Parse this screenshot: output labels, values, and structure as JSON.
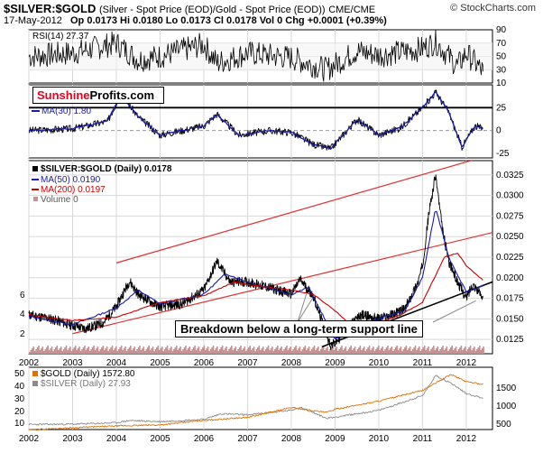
{
  "header": {
    "title": "$SILVER:$GOLD",
    "subtitle": "(Silver - Spot Price (EOD)/Gold - Spot Price (EOD))",
    "exchange": "CME/CME",
    "credit": "© StockCharts.com",
    "date": "17-May-2012",
    "quote": "Op 0.0173  Hi 0.0180  Lo 0.0173  Cl 0.0178  Vol 0  Chg +0.0001 (+0.39%)"
  },
  "brand": {
    "part1": "Sunshine",
    "part2": "Profits.com"
  },
  "annotation": "Breakdown below a long-term support line",
  "colors": {
    "price": "#000000",
    "ma50": "#1a1ab0",
    "ma200": "#cc0000",
    "channel": "#e03030",
    "gold": "#e07000",
    "silver": "#8a8a8a",
    "volume": "#c89090"
  },
  "chart_data": [
    {
      "type": "line",
      "title": "RSI(14) 27.37",
      "legend": [
        "RSI(14) 27.37"
      ],
      "y_ticks": [
        "90",
        "70",
        "50",
        "30",
        "10"
      ],
      "ylim": [
        10,
        90
      ],
      "x": [
        2002.0,
        2003.0,
        2004.0,
        2004.5,
        2005.0,
        2006.0,
        2006.3,
        2007.0,
        2008.0,
        2008.8,
        2009.5,
        2010.0,
        2010.5,
        2011.0,
        2011.3,
        2011.8,
        2012.0,
        2012.38
      ],
      "values": [
        50,
        55,
        70,
        45,
        50,
        68,
        40,
        55,
        48,
        30,
        58,
        52,
        56,
        62,
        72,
        35,
        55,
        27.37
      ]
    },
    {
      "type": "line",
      "title": "MA(30) 1.80",
      "legend": [
        "MA(30) 1.80"
      ],
      "y_ticks": [
        "25",
        "0",
        "-25"
      ],
      "ylim": [
        -30,
        50
      ],
      "x": [
        2002.0,
        2003.0,
        2003.8,
        2004.1,
        2004.5,
        2005.0,
        2006.0,
        2006.3,
        2006.8,
        2007.5,
        2008.0,
        2008.5,
        2008.9,
        2009.5,
        2010.0,
        2010.5,
        2011.0,
        2011.3,
        2011.6,
        2011.9,
        2012.2,
        2012.38
      ],
      "values": [
        0,
        2,
        10,
        40,
        15,
        -5,
        5,
        18,
        -5,
        0,
        -2,
        -15,
        -20,
        12,
        -5,
        3,
        25,
        42,
        20,
        -18,
        5,
        1.8
      ]
    },
    {
      "type": "line",
      "title": "$SILVER:$GOLD (Daily) 0.0178",
      "legend": [
        "$SILVER:$GOLD (Daily) 0.0178",
        "MA(50) 0.0190",
        "MA(200) 0.0197",
        "Volume 0"
      ],
      "y_ticks": [
        "0.0325",
        "0.0300",
        "0.0275",
        "0.0250",
        "0.0225",
        "0.0200",
        "0.0175",
        "0.0150",
        "0.0125"
      ],
      "left_ticks": [
        "6",
        "4",
        "2"
      ],
      "x_ticks": [
        "2002",
        "2003",
        "2004",
        "2005",
        "2006",
        "2007",
        "2008",
        "2009",
        "2010",
        "2011",
        "2012"
      ],
      "xlim": [
        2002.0,
        2012.6
      ],
      "series": [
        {
          "name": "$SILVER:$GOLD (Daily) 0.0178",
          "x": [
            2002.0,
            2002.5,
            2003.0,
            2003.3,
            2003.7,
            2004.0,
            2004.3,
            2004.5,
            2004.8,
            2005.0,
            2005.5,
            2006.0,
            2006.3,
            2006.6,
            2007.0,
            2007.5,
            2008.0,
            2008.2,
            2008.5,
            2008.75,
            2008.9,
            2009.0,
            2009.3,
            2009.6,
            2010.0,
            2010.3,
            2010.6,
            2010.9,
            2011.0,
            2011.15,
            2011.3,
            2011.45,
            2011.6,
            2011.8,
            2012.0,
            2012.15,
            2012.3,
            2012.38
          ],
          "values": [
            0.0155,
            0.015,
            0.0142,
            0.0138,
            0.0145,
            0.0165,
            0.0196,
            0.018,
            0.017,
            0.0165,
            0.0168,
            0.0185,
            0.022,
            0.0195,
            0.0195,
            0.0188,
            0.018,
            0.0198,
            0.0178,
            0.014,
            0.0118,
            0.012,
            0.014,
            0.0155,
            0.015,
            0.0155,
            0.0162,
            0.0195,
            0.0215,
            0.028,
            0.0325,
            0.026,
            0.022,
            0.0195,
            0.0175,
            0.0193,
            0.0182,
            0.0178
          ]
        },
        {
          "name": "MA(50) 0.0190",
          "x": [
            2002.0,
            2003.0,
            2004.0,
            2004.5,
            2005.0,
            2006.0,
            2006.5,
            2007.0,
            2008.0,
            2008.4,
            2009.0,
            2009.5,
            2010.0,
            2010.6,
            2011.0,
            2011.3,
            2011.6,
            2012.0,
            2012.38
          ],
          "values": [
            0.0153,
            0.0143,
            0.0163,
            0.0185,
            0.0168,
            0.018,
            0.0205,
            0.0195,
            0.018,
            0.0188,
            0.0125,
            0.014,
            0.015,
            0.016,
            0.02,
            0.0285,
            0.0225,
            0.0183,
            0.019
          ]
        },
        {
          "name": "MA(200) 0.0197",
          "x": [
            2002.0,
            2003.0,
            2004.0,
            2005.0,
            2006.0,
            2006.7,
            2007.0,
            2008.0,
            2008.5,
            2009.0,
            2009.5,
            2010.0,
            2010.5,
            2011.0,
            2011.5,
            2011.8,
            2012.0,
            2012.38
          ],
          "values": [
            0.0155,
            0.0148,
            0.0152,
            0.017,
            0.0178,
            0.0195,
            0.0192,
            0.0185,
            0.018,
            0.016,
            0.0135,
            0.0145,
            0.0155,
            0.017,
            0.0225,
            0.023,
            0.0215,
            0.0197
          ]
        }
      ],
      "trendlines": [
        {
          "name": "channel-upper",
          "x": [
            2004.0,
            2012.6
          ],
          "values": [
            0.0218,
            0.035
          ]
        },
        {
          "name": "channel-lower",
          "x": [
            2003.0,
            2012.6
          ],
          "values": [
            0.0132,
            0.0255
          ]
        },
        {
          "name": "support",
          "x": [
            2008.7,
            2012.6
          ],
          "values": [
            0.0116,
            0.0195
          ]
        }
      ]
    },
    {
      "type": "line",
      "title": "$GOLD (Daily) 1572.80 / $SILVER (Daily) 27.93",
      "legend": [
        "$GOLD (Daily) 1572.80",
        "$SILVER (Daily) 27.93"
      ],
      "left_ticks": [
        "50",
        "40",
        "30",
        "20",
        "10"
      ],
      "right_ticks": [
        "1500",
        "1000",
        "500"
      ],
      "x_ticks": [
        "2002",
        "2003",
        "2004",
        "2005",
        "2006",
        "2007",
        "2008",
        "2009",
        "2010",
        "2011",
        "2012"
      ],
      "series": [
        {
          "name": "$GOLD (Daily) 1572.80",
          "x": [
            2002.0,
            2003.0,
            2004.0,
            2005.0,
            2006.0,
            2007.0,
            2008.0,
            2008.8,
            2009.0,
            2010.0,
            2011.0,
            2011.65,
            2012.0,
            2012.38
          ],
          "values": [
            290,
            350,
            400,
            430,
            560,
            640,
            920,
            780,
            870,
            1100,
            1400,
            1850,
            1650,
            1572.8
          ]
        },
        {
          "name": "$SILVER (Daily) 27.93",
          "x": [
            2002.0,
            2003.0,
            2004.0,
            2004.3,
            2005.0,
            2006.0,
            2006.4,
            2007.0,
            2008.0,
            2008.2,
            2008.8,
            2009.0,
            2010.0,
            2011.0,
            2011.3,
            2011.7,
            2012.0,
            2012.38
          ],
          "values": [
            4.5,
            4.8,
            6.0,
            8.0,
            7.0,
            9.0,
            14.0,
            13.0,
            17.0,
            20.0,
            10.0,
            11.0,
            17.0,
            30.0,
            48.0,
            40.0,
            32.0,
            27.93
          ]
        }
      ]
    }
  ]
}
